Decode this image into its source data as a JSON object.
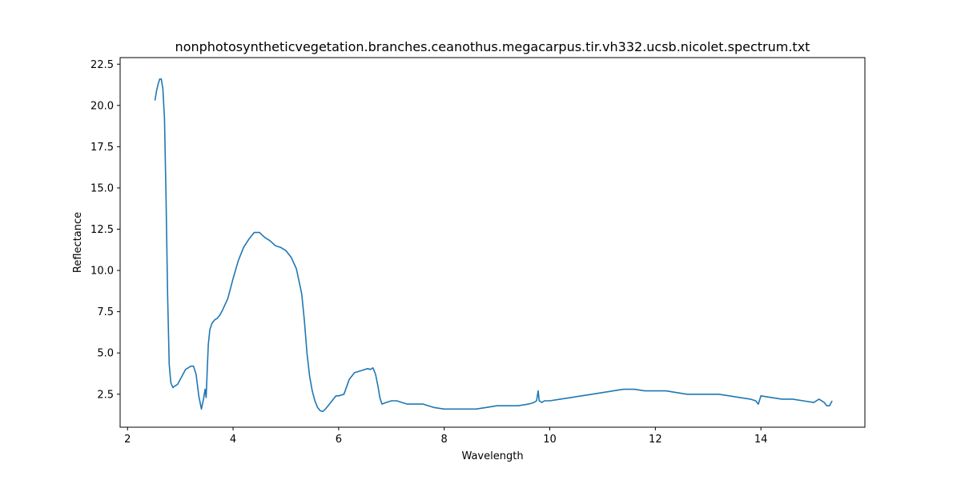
{
  "chart_data": {
    "type": "line",
    "title": "nonphotosyntheticvegetation.branches.ceanothus.megacarpus.tir.vh332.ucsb.nicolet.spectrum.txt",
    "xlabel": "Wavelength",
    "ylabel": "Reflectance",
    "xlim": [
      1.86,
      15.97
    ],
    "ylim": [
      0.5,
      22.9
    ],
    "xticks": [
      2,
      4,
      6,
      8,
      10,
      12,
      14
    ],
    "yticks": [
      2.5,
      5.0,
      7.5,
      10.0,
      12.5,
      15.0,
      17.5,
      20.0,
      22.5
    ],
    "ytick_labels": [
      "2.5",
      "5.0",
      "7.5",
      "10.0",
      "12.5",
      "15.0",
      "17.5",
      "20.0",
      "22.5"
    ],
    "grid": false,
    "series": [
      {
        "color": "#1f77b4",
        "x": [
          2.52,
          2.55,
          2.58,
          2.61,
          2.64,
          2.67,
          2.7,
          2.73,
          2.76,
          2.79,
          2.82,
          2.86,
          2.9,
          2.95,
          3.0,
          3.05,
          3.1,
          3.15,
          3.2,
          3.25,
          3.3,
          3.35,
          3.4,
          3.44,
          3.47,
          3.49,
          3.51,
          3.53,
          3.56,
          3.6,
          3.65,
          3.7,
          3.75,
          3.8,
          3.9,
          4.0,
          4.1,
          4.2,
          4.3,
          4.4,
          4.5,
          4.6,
          4.7,
          4.8,
          4.9,
          5.0,
          5.1,
          5.2,
          5.3,
          5.35,
          5.4,
          5.45,
          5.5,
          5.55,
          5.6,
          5.65,
          5.7,
          5.75,
          5.8,
          5.85,
          5.9,
          5.95,
          6.0,
          6.1,
          6.2,
          6.3,
          6.4,
          6.5,
          6.55,
          6.6,
          6.65,
          6.7,
          6.75,
          6.78,
          6.82,
          6.9,
          7.0,
          7.1,
          7.2,
          7.3,
          7.4,
          7.6,
          7.8,
          8.0,
          8.2,
          8.4,
          8.6,
          8.8,
          9.0,
          9.2,
          9.4,
          9.6,
          9.7,
          9.75,
          9.78,
          9.8,
          9.85,
          9.9,
          10.0,
          10.2,
          10.4,
          10.6,
          10.8,
          11.0,
          11.2,
          11.4,
          11.6,
          11.8,
          12.0,
          12.2,
          12.4,
          12.6,
          12.8,
          13.0,
          13.2,
          13.4,
          13.6,
          13.8,
          13.9,
          13.95,
          14.0,
          14.2,
          14.4,
          14.6,
          14.8,
          15.0,
          15.1,
          15.2,
          15.25,
          15.3,
          15.35
        ],
        "y": [
          20.3,
          20.9,
          21.3,
          21.6,
          21.6,
          21.0,
          19.2,
          14.5,
          8.5,
          4.3,
          3.2,
          2.9,
          3.0,
          3.1,
          3.4,
          3.7,
          4.0,
          4.1,
          4.2,
          4.2,
          3.7,
          2.4,
          1.6,
          2.2,
          2.8,
          2.3,
          4.0,
          5.5,
          6.4,
          6.8,
          7.0,
          7.1,
          7.3,
          7.6,
          8.3,
          9.5,
          10.6,
          11.4,
          11.9,
          12.3,
          12.3,
          12.0,
          11.8,
          11.5,
          11.4,
          11.2,
          10.8,
          10.1,
          8.6,
          7.0,
          5.0,
          3.6,
          2.7,
          2.1,
          1.7,
          1.5,
          1.45,
          1.6,
          1.8,
          2.0,
          2.2,
          2.4,
          2.4,
          2.5,
          3.4,
          3.8,
          3.9,
          4.0,
          4.05,
          4.0,
          4.1,
          3.7,
          2.9,
          2.3,
          1.9,
          2.0,
          2.1,
          2.1,
          2.0,
          1.9,
          1.9,
          1.9,
          1.7,
          1.6,
          1.6,
          1.6,
          1.6,
          1.7,
          1.8,
          1.8,
          1.8,
          1.9,
          2.0,
          2.1,
          2.7,
          2.1,
          2.0,
          2.1,
          2.1,
          2.2,
          2.3,
          2.4,
          2.5,
          2.6,
          2.7,
          2.8,
          2.8,
          2.7,
          2.7,
          2.7,
          2.6,
          2.5,
          2.5,
          2.5,
          2.5,
          2.4,
          2.3,
          2.2,
          2.1,
          1.9,
          2.4,
          2.3,
          2.2,
          2.2,
          2.1,
          2.0,
          2.2,
          2.0,
          1.8,
          1.8,
          2.1
        ]
      }
    ]
  }
}
